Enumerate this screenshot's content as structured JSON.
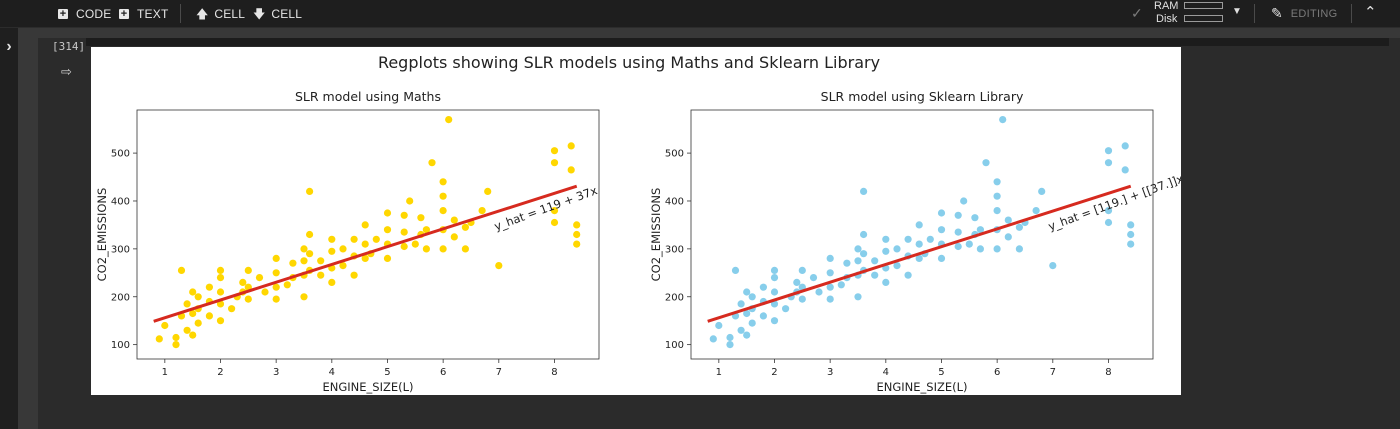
{
  "toolbar": {
    "code_label": "CODE",
    "text_label": "TEXT",
    "cell_up_label": "CELL",
    "cell_down_label": "CELL",
    "ram_label": "RAM",
    "disk_label": "Disk",
    "editing_label": "EDITING"
  },
  "cell": {
    "execution_count": "[314]"
  },
  "colors": {
    "toolbar_bg": "#1e1e1e",
    "page_bg": "#383838",
    "maths_points": "#ffd700",
    "sklearn_points": "#87ceeb",
    "regression_line": "#d62a1f"
  },
  "figure": {
    "suptitle": "Regplots showing SLR models using Maths and Sklearn Library"
  },
  "chart_data": [
    {
      "type": "scatter",
      "title": "SLR model using Maths",
      "xlabel": "ENGINE_SIZE(L)",
      "ylabel": "CO2_EMISSIONS",
      "xlim": [
        0.5,
        8.8
      ],
      "ylim": [
        70,
        590
      ],
      "xticks": [
        1,
        2,
        3,
        4,
        5,
        6,
        7,
        8
      ],
      "yticks": [
        100,
        200,
        300,
        400,
        500
      ],
      "grid": false,
      "point_color": "#ffd700",
      "series": [
        {
          "points": [
            [
              0.9,
              112
            ],
            [
              1.0,
              140
            ],
            [
              1.2,
              100
            ],
            [
              1.2,
              115
            ],
            [
              1.3,
              160
            ],
            [
              1.3,
              255
            ],
            [
              1.4,
              130
            ],
            [
              1.4,
              185
            ],
            [
              1.5,
              120
            ],
            [
              1.5,
              165
            ],
            [
              1.5,
              210
            ],
            [
              1.6,
              145
            ],
            [
              1.6,
              175
            ],
            [
              1.6,
              200
            ],
            [
              1.8,
              160
            ],
            [
              1.8,
              190
            ],
            [
              1.8,
              220
            ],
            [
              2.0,
              150
            ],
            [
              2.0,
              185
            ],
            [
              2.0,
              210
            ],
            [
              2.0,
              240
            ],
            [
              2.0,
              255
            ],
            [
              2.2,
              175
            ],
            [
              2.3,
              200
            ],
            [
              2.4,
              210
            ],
            [
              2.4,
              230
            ],
            [
              2.5,
              195
            ],
            [
              2.5,
              220
            ],
            [
              2.5,
              255
            ],
            [
              2.7,
              240
            ],
            [
              2.8,
              210
            ],
            [
              3.0,
              195
            ],
            [
              3.0,
              220
            ],
            [
              3.0,
              250
            ],
            [
              3.0,
              280
            ],
            [
              3.2,
              225
            ],
            [
              3.3,
              240
            ],
            [
              3.3,
              270
            ],
            [
              3.5,
              200
            ],
            [
              3.5,
              245
            ],
            [
              3.5,
              275
            ],
            [
              3.5,
              300
            ],
            [
              3.6,
              255
            ],
            [
              3.6,
              290
            ],
            [
              3.6,
              330
            ],
            [
              3.6,
              420
            ],
            [
              3.8,
              245
            ],
            [
              3.8,
              275
            ],
            [
              4.0,
              230
            ],
            [
              4.0,
              260
            ],
            [
              4.0,
              295
            ],
            [
              4.0,
              320
            ],
            [
              4.2,
              265
            ],
            [
              4.2,
              300
            ],
            [
              4.4,
              245
            ],
            [
              4.4,
              285
            ],
            [
              4.4,
              320
            ],
            [
              4.6,
              280
            ],
            [
              4.6,
              310
            ],
            [
              4.6,
              350
            ],
            [
              4.7,
              290
            ],
            [
              4.8,
              320
            ],
            [
              5.0,
              280
            ],
            [
              5.0,
              310
            ],
            [
              5.0,
              340
            ],
            [
              5.0,
              375
            ],
            [
              5.3,
              305
            ],
            [
              5.3,
              335
            ],
            [
              5.3,
              370
            ],
            [
              5.4,
              400
            ],
            [
              5.5,
              310
            ],
            [
              5.6,
              330
            ],
            [
              5.6,
              365
            ],
            [
              5.7,
              300
            ],
            [
              5.7,
              340
            ],
            [
              5.8,
              480
            ],
            [
              6.0,
              300
            ],
            [
              6.0,
              340
            ],
            [
              6.0,
              380
            ],
            [
              6.0,
              410
            ],
            [
              6.0,
              440
            ],
            [
              6.1,
              570
            ],
            [
              6.2,
              325
            ],
            [
              6.2,
              360
            ],
            [
              6.4,
              300
            ],
            [
              6.4,
              345
            ],
            [
              6.5,
              355
            ],
            [
              6.7,
              380
            ],
            [
              6.8,
              420
            ],
            [
              7.0,
              265
            ],
            [
              8.0,
              505
            ],
            [
              8.0,
              480
            ],
            [
              8.0,
              380
            ],
            [
              8.0,
              355
            ],
            [
              8.3,
              515
            ],
            [
              8.3,
              465
            ],
            [
              8.4,
              350
            ],
            [
              8.4,
              330
            ],
            [
              8.4,
              310
            ]
          ]
        }
      ],
      "regression": {
        "x": [
          0.8,
          8.4
        ],
        "y": [
          148.6,
          430.9
        ],
        "annotation": "y_hat = 119 + 37x"
      }
    },
    {
      "type": "scatter",
      "title": "SLR model using Sklearn Library",
      "xlabel": "ENGINE_SIZE(L)",
      "ylabel": "CO2_EMISSIONS",
      "xlim": [
        0.5,
        8.8
      ],
      "ylim": [
        70,
        590
      ],
      "xticks": [
        1,
        2,
        3,
        4,
        5,
        6,
        7,
        8
      ],
      "yticks": [
        100,
        200,
        300,
        400,
        500
      ],
      "grid": false,
      "point_color": "#87ceeb",
      "series": [
        {
          "points": [
            [
              0.9,
              112
            ],
            [
              1.0,
              140
            ],
            [
              1.2,
              100
            ],
            [
              1.2,
              115
            ],
            [
              1.3,
              160
            ],
            [
              1.3,
              255
            ],
            [
              1.4,
              130
            ],
            [
              1.4,
              185
            ],
            [
              1.5,
              120
            ],
            [
              1.5,
              165
            ],
            [
              1.5,
              210
            ],
            [
              1.6,
              145
            ],
            [
              1.6,
              175
            ],
            [
              1.6,
              200
            ],
            [
              1.8,
              160
            ],
            [
              1.8,
              190
            ],
            [
              1.8,
              220
            ],
            [
              2.0,
              150
            ],
            [
              2.0,
              185
            ],
            [
              2.0,
              210
            ],
            [
              2.0,
              240
            ],
            [
              2.0,
              255
            ],
            [
              2.2,
              175
            ],
            [
              2.3,
              200
            ],
            [
              2.4,
              210
            ],
            [
              2.4,
              230
            ],
            [
              2.5,
              195
            ],
            [
              2.5,
              220
            ],
            [
              2.5,
              255
            ],
            [
              2.7,
              240
            ],
            [
              2.8,
              210
            ],
            [
              3.0,
              195
            ],
            [
              3.0,
              220
            ],
            [
              3.0,
              250
            ],
            [
              3.0,
              280
            ],
            [
              3.2,
              225
            ],
            [
              3.3,
              240
            ],
            [
              3.3,
              270
            ],
            [
              3.5,
              200
            ],
            [
              3.5,
              245
            ],
            [
              3.5,
              275
            ],
            [
              3.5,
              300
            ],
            [
              3.6,
              255
            ],
            [
              3.6,
              290
            ],
            [
              3.6,
              330
            ],
            [
              3.6,
              420
            ],
            [
              3.8,
              245
            ],
            [
              3.8,
              275
            ],
            [
              4.0,
              230
            ],
            [
              4.0,
              260
            ],
            [
              4.0,
              295
            ],
            [
              4.0,
              320
            ],
            [
              4.2,
              265
            ],
            [
              4.2,
              300
            ],
            [
              4.4,
              245
            ],
            [
              4.4,
              285
            ],
            [
              4.4,
              320
            ],
            [
              4.6,
              280
            ],
            [
              4.6,
              310
            ],
            [
              4.6,
              350
            ],
            [
              4.7,
              290
            ],
            [
              4.8,
              320
            ],
            [
              5.0,
              280
            ],
            [
              5.0,
              310
            ],
            [
              5.0,
              340
            ],
            [
              5.0,
              375
            ],
            [
              5.3,
              305
            ],
            [
              5.3,
              335
            ],
            [
              5.3,
              370
            ],
            [
              5.4,
              400
            ],
            [
              5.5,
              310
            ],
            [
              5.6,
              330
            ],
            [
              5.6,
              365
            ],
            [
              5.7,
              300
            ],
            [
              5.7,
              340
            ],
            [
              5.8,
              480
            ],
            [
              6.0,
              300
            ],
            [
              6.0,
              340
            ],
            [
              6.0,
              380
            ],
            [
              6.0,
              410
            ],
            [
              6.0,
              440
            ],
            [
              6.1,
              570
            ],
            [
              6.2,
              325
            ],
            [
              6.2,
              360
            ],
            [
              6.4,
              300
            ],
            [
              6.4,
              345
            ],
            [
              6.5,
              355
            ],
            [
              6.7,
              380
            ],
            [
              6.8,
              420
            ],
            [
              7.0,
              265
            ],
            [
              8.0,
              505
            ],
            [
              8.0,
              480
            ],
            [
              8.0,
              380
            ],
            [
              8.0,
              355
            ],
            [
              8.3,
              515
            ],
            [
              8.3,
              465
            ],
            [
              8.4,
              350
            ],
            [
              8.4,
              330
            ],
            [
              8.4,
              310
            ]
          ]
        }
      ],
      "regression": {
        "x": [
          0.8,
          8.4
        ],
        "y": [
          148.6,
          430.9
        ],
        "annotation": "y_hat = [119.] + [[37.]]x"
      }
    }
  ]
}
